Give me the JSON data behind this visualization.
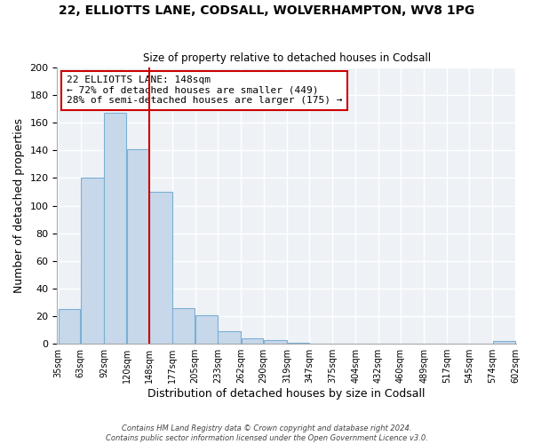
{
  "title1": "22, ELLIOTTS LANE, CODSALL, WOLVERHAMPTON, WV8 1PG",
  "title2": "Size of property relative to detached houses in Codsall",
  "xlabel": "Distribution of detached houses by size in Codsall",
  "ylabel": "Number of detached properties",
  "bar_color": "#c8d8eb",
  "bar_edge_color": "#7bafd4",
  "vline_x": 148,
  "vline_color": "#cc0000",
  "annotation_title": "22 ELLIOTTS LANE: 148sqm",
  "annotation_line1": "← 72% of detached houses are smaller (449)",
  "annotation_line2": "28% of semi-detached houses are larger (175) →",
  "bin_edges": [
    35,
    63,
    92,
    120,
    148,
    177,
    205,
    233,
    262,
    290,
    319,
    347,
    375,
    404,
    432,
    460,
    489,
    517,
    545,
    574,
    602
  ],
  "bin_counts": [
    25,
    120,
    167,
    141,
    110,
    26,
    21,
    9,
    4,
    3,
    1,
    0,
    0,
    0,
    0,
    0,
    0,
    0,
    0,
    2
  ],
  "ylim": [
    0,
    200
  ],
  "yticks": [
    0,
    20,
    40,
    60,
    80,
    100,
    120,
    140,
    160,
    180,
    200
  ],
  "footer1": "Contains HM Land Registry data © Crown copyright and database right 2024.",
  "footer2": "Contains public sector information licensed under the Open Government Licence v3.0.",
  "bg_color": "#eef2f7"
}
